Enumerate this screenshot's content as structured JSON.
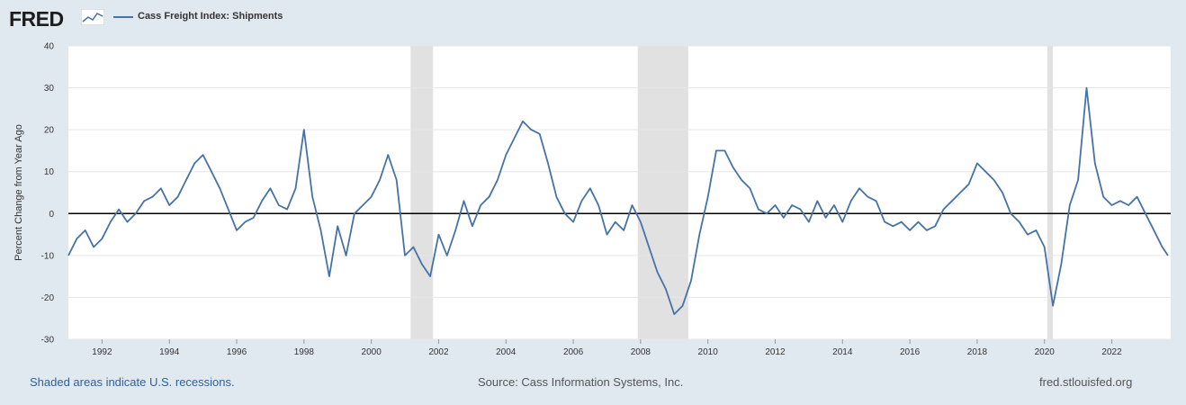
{
  "header": {
    "logo_text": "FRED",
    "legend_label": "Cass Freight Index: Shipments"
  },
  "footer": {
    "note": "Shaded areas indicate U.S. recessions.",
    "source": "Source: Cass Information Systems, Inc.",
    "site": "fred.stlouisfed.org"
  },
  "colors": {
    "series": "#4572a7",
    "recession": "#e1e1e1",
    "background": "#e1e9f0",
    "plot": "#ffffff",
    "zero_line": "#000000"
  },
  "chart_data": {
    "type": "line",
    "title": "",
    "xlabel": "",
    "ylabel": "Percent Change from Year Ago",
    "ylim": [
      -30,
      40
    ],
    "yticks": [
      -30,
      -20,
      -10,
      0,
      10,
      20,
      30,
      40
    ],
    "xticks": [
      1992,
      1994,
      1996,
      1998,
      2000,
      2002,
      2004,
      2006,
      2008,
      2010,
      2012,
      2014,
      2016,
      2018,
      2020,
      2022
    ],
    "grid": "horizontal",
    "recessions": [
      {
        "start": "2001-03",
        "end": "2001-11"
      },
      {
        "start": "2007-12",
        "end": "2009-06"
      },
      {
        "start": "2020-02",
        "end": "2020-04"
      }
    ],
    "series": [
      {
        "name": "Cass Freight Index: Shipments",
        "points": [
          [
            "1991-01",
            -10
          ],
          [
            "1991-04",
            -6
          ],
          [
            "1991-07",
            -4
          ],
          [
            "1991-10",
            -8
          ],
          [
            "1992-01",
            -6
          ],
          [
            "1992-04",
            -2
          ],
          [
            "1992-07",
            1
          ],
          [
            "1992-10",
            -2
          ],
          [
            "1993-01",
            0
          ],
          [
            "1993-04",
            3
          ],
          [
            "1993-07",
            4
          ],
          [
            "1993-10",
            6
          ],
          [
            "1994-01",
            2
          ],
          [
            "1994-04",
            4
          ],
          [
            "1994-07",
            8
          ],
          [
            "1994-10",
            12
          ],
          [
            "1995-01",
            14
          ],
          [
            "1995-04",
            10
          ],
          [
            "1995-07",
            6
          ],
          [
            "1995-10",
            1
          ],
          [
            "1996-01",
            -4
          ],
          [
            "1996-04",
            -2
          ],
          [
            "1996-07",
            -1
          ],
          [
            "1996-10",
            3
          ],
          [
            "1997-01",
            6
          ],
          [
            "1997-04",
            2
          ],
          [
            "1997-07",
            1
          ],
          [
            "1997-10",
            6
          ],
          [
            "1998-01",
            20
          ],
          [
            "1998-04",
            4
          ],
          [
            "1998-07",
            -4
          ],
          [
            "1998-10",
            -15
          ],
          [
            "1999-01",
            -3
          ],
          [
            "1999-04",
            -10
          ],
          [
            "1999-07",
            0
          ],
          [
            "1999-10",
            2
          ],
          [
            "2000-01",
            4
          ],
          [
            "2000-04",
            8
          ],
          [
            "2000-07",
            14
          ],
          [
            "2000-10",
            8
          ],
          [
            "2001-01",
            -10
          ],
          [
            "2001-04",
            -8
          ],
          [
            "2001-07",
            -12
          ],
          [
            "2001-10",
            -15
          ],
          [
            "2002-01",
            -5
          ],
          [
            "2002-04",
            -10
          ],
          [
            "2002-07",
            -4
          ],
          [
            "2002-10",
            3
          ],
          [
            "2003-01",
            -3
          ],
          [
            "2003-04",
            2
          ],
          [
            "2003-07",
            4
          ],
          [
            "2003-10",
            8
          ],
          [
            "2004-01",
            14
          ],
          [
            "2004-04",
            18
          ],
          [
            "2004-07",
            22
          ],
          [
            "2004-10",
            20
          ],
          [
            "2005-01",
            19
          ],
          [
            "2005-04",
            12
          ],
          [
            "2005-07",
            4
          ],
          [
            "2005-10",
            0
          ],
          [
            "2006-01",
            -2
          ],
          [
            "2006-04",
            3
          ],
          [
            "2006-07",
            6
          ],
          [
            "2006-10",
            2
          ],
          [
            "2007-01",
            -5
          ],
          [
            "2007-04",
            -2
          ],
          [
            "2007-07",
            -4
          ],
          [
            "2007-10",
            2
          ],
          [
            "2008-01",
            -2
          ],
          [
            "2008-04",
            -8
          ],
          [
            "2008-07",
            -14
          ],
          [
            "2008-10",
            -18
          ],
          [
            "2009-01",
            -24
          ],
          [
            "2009-04",
            -22
          ],
          [
            "2009-07",
            -16
          ],
          [
            "2009-10",
            -5
          ],
          [
            "2010-01",
            4
          ],
          [
            "2010-04",
            15
          ],
          [
            "2010-07",
            15
          ],
          [
            "2010-10",
            11
          ],
          [
            "2011-01",
            8
          ],
          [
            "2011-04",
            6
          ],
          [
            "2011-07",
            1
          ],
          [
            "2011-10",
            0
          ],
          [
            "2012-01",
            2
          ],
          [
            "2012-04",
            -1
          ],
          [
            "2012-07",
            2
          ],
          [
            "2012-10",
            1
          ],
          [
            "2013-01",
            -2
          ],
          [
            "2013-04",
            3
          ],
          [
            "2013-07",
            -1
          ],
          [
            "2013-10",
            2
          ],
          [
            "2014-01",
            -2
          ],
          [
            "2014-04",
            3
          ],
          [
            "2014-07",
            6
          ],
          [
            "2014-10",
            4
          ],
          [
            "2015-01",
            3
          ],
          [
            "2015-04",
            -2
          ],
          [
            "2015-07",
            -3
          ],
          [
            "2015-10",
            -2
          ],
          [
            "2016-01",
            -4
          ],
          [
            "2016-04",
            -2
          ],
          [
            "2016-07",
            -4
          ],
          [
            "2016-10",
            -3
          ],
          [
            "2017-01",
            1
          ],
          [
            "2017-04",
            3
          ],
          [
            "2017-07",
            5
          ],
          [
            "2017-10",
            7
          ],
          [
            "2018-01",
            12
          ],
          [
            "2018-04",
            10
          ],
          [
            "2018-07",
            8
          ],
          [
            "2018-10",
            5
          ],
          [
            "2019-01",
            0
          ],
          [
            "2019-04",
            -2
          ],
          [
            "2019-07",
            -5
          ],
          [
            "2019-10",
            -4
          ],
          [
            "2020-01",
            -8
          ],
          [
            "2020-04",
            -22
          ],
          [
            "2020-07",
            -12
          ],
          [
            "2020-10",
            2
          ],
          [
            "2021-01",
            8
          ],
          [
            "2021-04",
            30
          ],
          [
            "2021-07",
            12
          ],
          [
            "2021-10",
            4
          ],
          [
            "2022-01",
            2
          ],
          [
            "2022-04",
            3
          ],
          [
            "2022-07",
            2
          ],
          [
            "2022-10",
            4
          ],
          [
            "2023-01",
            0
          ],
          [
            "2023-04",
            -4
          ],
          [
            "2023-07",
            -8
          ],
          [
            "2023-09",
            -10
          ]
        ]
      }
    ]
  }
}
